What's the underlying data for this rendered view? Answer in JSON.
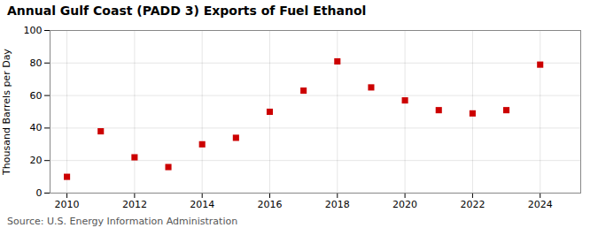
{
  "chart_data": {
    "type": "scatter",
    "title": "Annual Gulf Coast (PADD 3) Exports of Fuel Ethanol",
    "ylabel": "Thousand Barrels per Day",
    "source": "Source: U.S. Energy Information Administration",
    "x": [
      2010,
      2011,
      2012,
      2013,
      2014,
      2015,
      2016,
      2017,
      2018,
      2019,
      2020,
      2021,
      2022,
      2023,
      2024
    ],
    "values": [
      10,
      38,
      22,
      16,
      30,
      34,
      50,
      63,
      81,
      65,
      57,
      51,
      49,
      51,
      79
    ],
    "color": "#cc0000",
    "marker": "square",
    "xlim": [
      2009.5,
      2025.2
    ],
    "ylim": [
      0,
      100
    ],
    "xticks": [
      2010,
      2012,
      2014,
      2016,
      2018,
      2020,
      2022,
      2024
    ],
    "yticks": [
      0,
      20,
      40,
      60,
      80,
      100
    ],
    "grid": true
  }
}
